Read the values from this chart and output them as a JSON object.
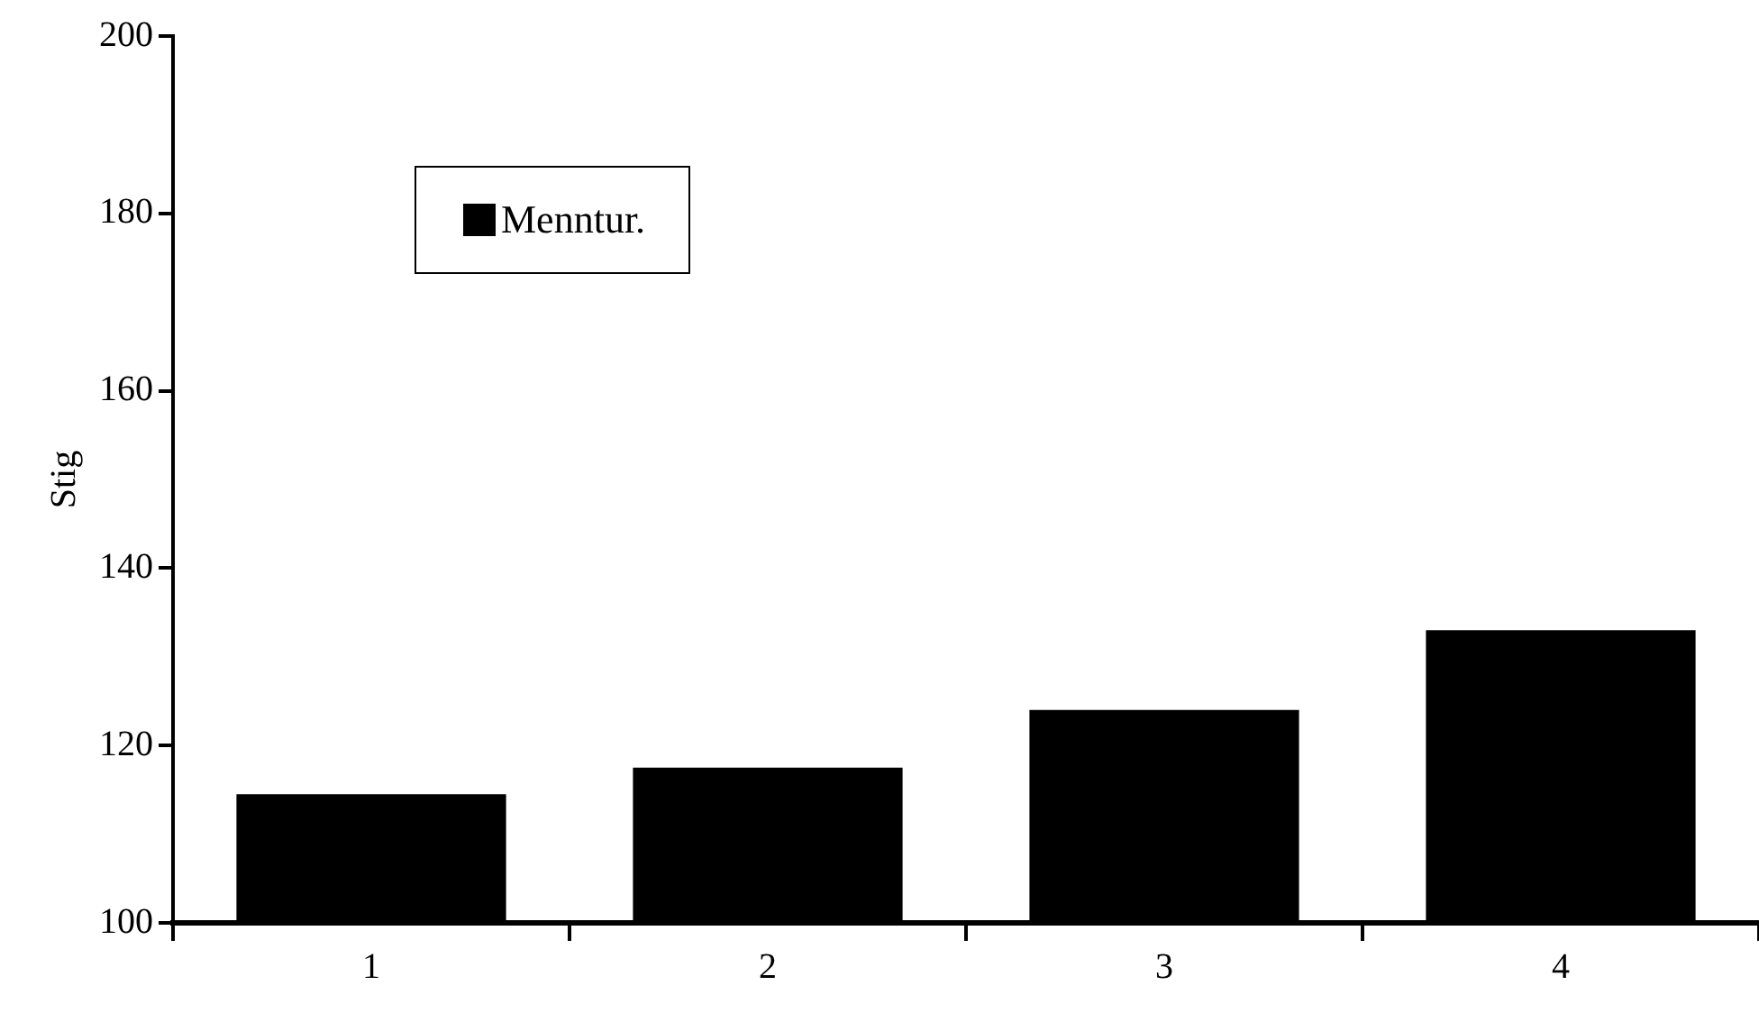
{
  "chart_data": {
    "type": "bar",
    "ylabel": "Stig",
    "categories": [
      "1",
      "2",
      "3",
      "4"
    ],
    "series": [
      {
        "name": "Menntur.",
        "color": "#000000",
        "values": [
          114.5,
          117.5,
          124,
          133
        ]
      }
    ],
    "ylim": [
      100,
      200
    ],
    "yticks": [
      100,
      120,
      140,
      160,
      180,
      200
    ],
    "grid": false,
    "legend": "top left"
  }
}
